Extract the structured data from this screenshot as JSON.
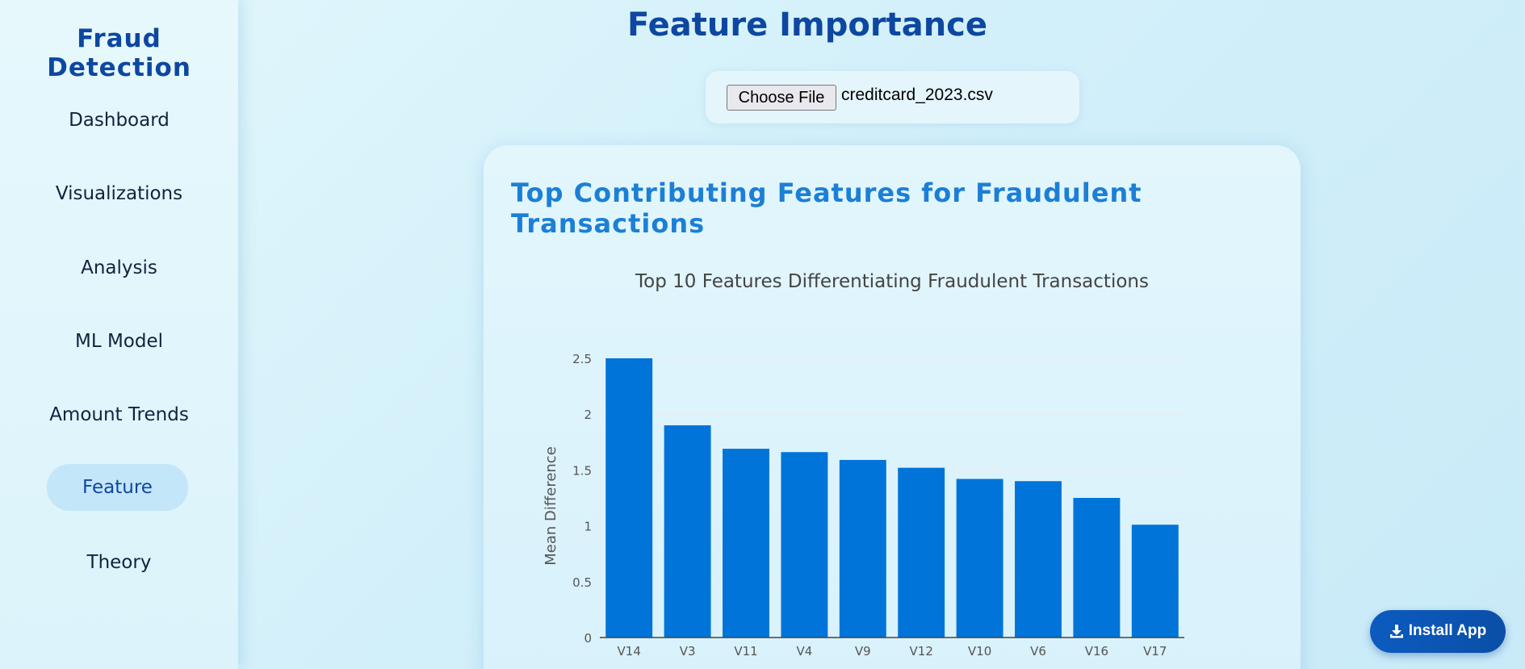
{
  "sidebar": {
    "brand": "Fraud Detection",
    "items": [
      {
        "label": "Dashboard",
        "active": false
      },
      {
        "label": "Visualizations",
        "active": false
      },
      {
        "label": "Analysis",
        "active": false
      },
      {
        "label": "ML Model",
        "active": false
      },
      {
        "label": "Amount Trends",
        "active": false
      },
      {
        "label": "Feature",
        "active": true
      },
      {
        "label": "Theory",
        "active": false
      }
    ]
  },
  "header": {
    "title": "Feature Importance"
  },
  "upload": {
    "button_label": "Choose File",
    "file_name": "creditcard_2023.csv"
  },
  "card": {
    "title": "Top Contributing Features for Fraudulent Transactions"
  },
  "install": {
    "label": "Install App",
    "icon": "download-icon"
  },
  "colors": {
    "accent": "#0d47a1",
    "bar": "#0074d9",
    "card_title": "#1c7fd6"
  },
  "chart_data": {
    "type": "bar",
    "title": "Top 10 Features Differentiating Fraudulent Transactions",
    "xlabel": "",
    "ylabel": "Mean Difference",
    "categories": [
      "V14",
      "V3",
      "V11",
      "V4",
      "V9",
      "V12",
      "V10",
      "V6",
      "V16",
      "V17"
    ],
    "values": [
      2.5,
      1.9,
      1.69,
      1.66,
      1.59,
      1.52,
      1.42,
      1.4,
      1.25,
      1.01
    ],
    "yticks": [
      "0",
      "0.5",
      "1",
      "1.5",
      "2",
      "2.5"
    ],
    "ylim": [
      0,
      2.5
    ],
    "grid": true,
    "legend": "none"
  }
}
